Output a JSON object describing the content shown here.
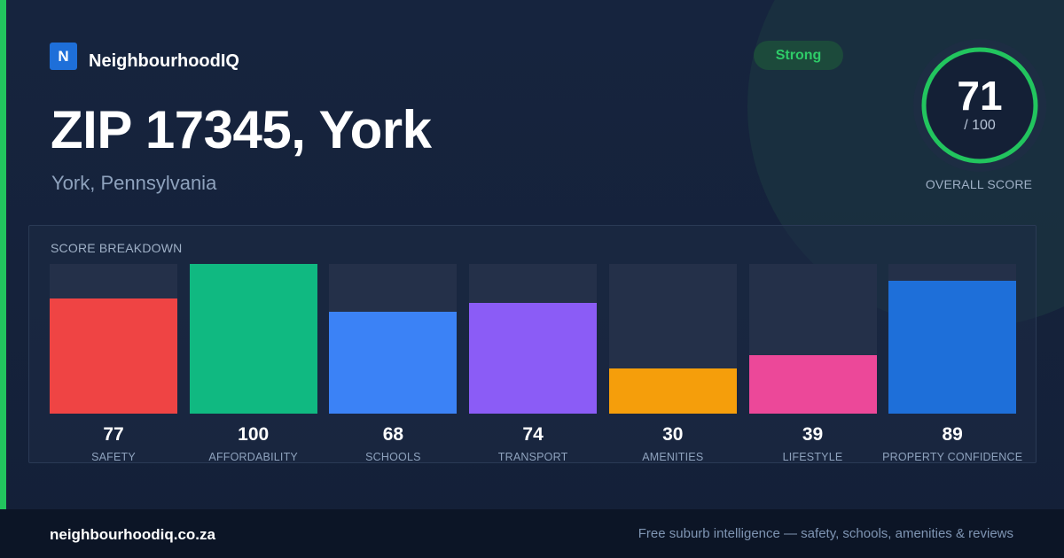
{
  "brand": {
    "logo_letter": "N",
    "name": "NeighbourhoodIQ"
  },
  "header": {
    "title": "ZIP 17345, York",
    "subtitle": "York, Pennsylvania",
    "badge": "Strong"
  },
  "overall": {
    "value": "71",
    "max": "/ 100",
    "label": "OVERALL SCORE",
    "fraction": 0.71
  },
  "breakdown": {
    "title": "SCORE BREAKDOWN"
  },
  "chart_data": {
    "type": "bar",
    "categories": [
      "SAFETY",
      "AFFORDABILITY",
      "SCHOOLS",
      "TRANSPORT",
      "AMENITIES",
      "LIFESTYLE",
      "PROPERTY CONFIDENCE"
    ],
    "values": [
      77,
      100,
      68,
      74,
      30,
      39,
      89
    ],
    "labels": [
      "77",
      "100",
      "68",
      "74",
      "30",
      "39",
      "89"
    ],
    "ylim": [
      0,
      100
    ],
    "colors": [
      "#ef4444",
      "#10b981",
      "#3b82f6",
      "#8b5cf6",
      "#f59e0b",
      "#ec4899",
      "#1e6fd9"
    ],
    "title": "SCORE BREAKDOWN"
  },
  "colors": {
    "accent": "#22c55e",
    "background": "#15223b",
    "footer": "#0c1526"
  },
  "footer": {
    "domain": "neighbourhoodiq.co.za",
    "tagline": "Free suburb intelligence — safety, schools, amenities & reviews"
  }
}
